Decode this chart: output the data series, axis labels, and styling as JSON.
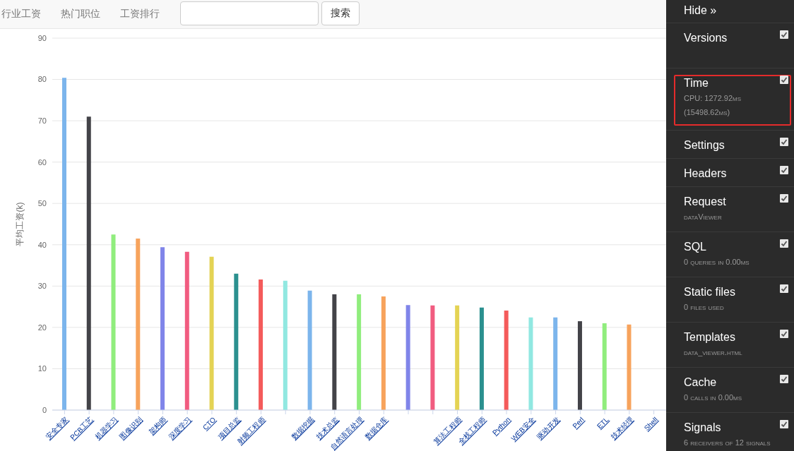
{
  "chart_data": {
    "type": "bar",
    "ylabel": "平均工资(k)",
    "categories": [
      "安全专家",
      "PCB工艺",
      "机器学习",
      "图像识别",
      "架构师",
      "深度学习",
      "CTO",
      "项目总监",
      "射频工程师",
      null,
      "数据挖掘",
      "技术总监",
      "自然语言处理",
      "数据仓库",
      null,
      null,
      "算法工程师",
      "全栈工程师",
      "Python",
      "WEB安全",
      "驱动开发",
      "Perl",
      "ETL",
      "技术经理",
      "Shell"
    ],
    "values": [
      80.4,
      71.0,
      42.5,
      41.5,
      39.4,
      38.3,
      37.1,
      33.0,
      31.6,
      31.3,
      28.9,
      28.0,
      28.0,
      27.5,
      25.4,
      25.3,
      25.3,
      24.8,
      24.1,
      22.4,
      22.4,
      21.5,
      21.0,
      20.7,
      null
    ],
    "colors": [
      "#7cb5ec",
      "#434348",
      "#90ed7d",
      "#f7a35c",
      "#8085e9",
      "#f15c80",
      "#e4d354",
      "#2b908f",
      "#f45b5b",
      "#91e8e1",
      "#7cb5ec",
      "#434348",
      "#90ed7d",
      "#f7a35c",
      "#8085e9",
      "#f15c80",
      "#e4d354",
      "#2b908f",
      "#f45b5b",
      "#91e8e1",
      "#7cb5ec",
      "#434348",
      "#90ed7d",
      "#f7a35c",
      "#8085e9"
    ],
    "ylim": [
      0,
      90
    ],
    "yticks": [
      0,
      10,
      20,
      30,
      40,
      50,
      60,
      70,
      80,
      90
    ],
    "grid": "y",
    "annotations": [
      "行业工资",
      "热门职位",
      "工资排行",
      "搜索",
      "Hide »",
      "Versions",
      "Time",
      "CPU: 1272.92ms",
      "(15498.62ms)",
      "Settings",
      "Headers",
      "Request",
      "dataViewer",
      "SQL",
      "0 queries in 0.00ms",
      "Static files",
      "0 files used",
      "Templates",
      "data_viewer.html",
      "Cache",
      "0 calls in 0.00ms",
      "Signals",
      "6 receivers of 12 signals"
    ]
  }
}
